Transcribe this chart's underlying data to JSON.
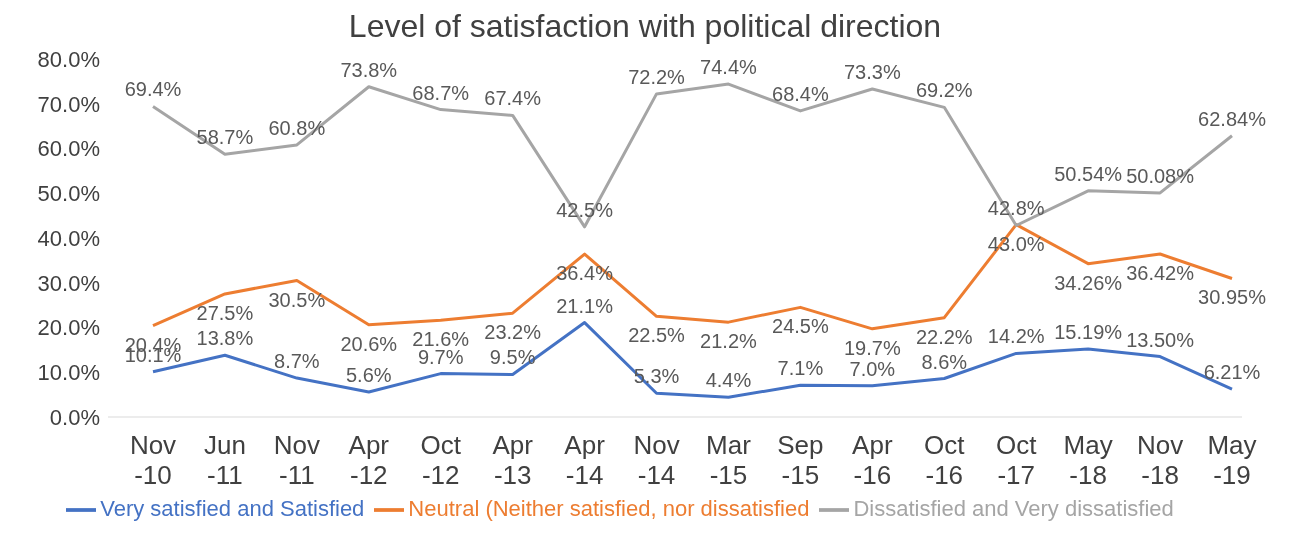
{
  "chart_data": {
    "type": "line",
    "title": "Level of satisfaction with political direction",
    "categories": [
      "Nov\n-10",
      "Jun\n-11",
      "Nov\n-11",
      "Apr\n-12",
      "Oct\n-12",
      "Apr\n-13",
      "Apr\n-14",
      "Nov\n-14",
      "Mar\n-15",
      "Sep\n-15",
      "Apr\n-16",
      "Oct\n-16",
      "Oct\n-17",
      "May\n-18",
      "Nov\n-18",
      "May\n-19"
    ],
    "series": [
      {
        "name": "Very satisfied and Satisfied",
        "color": "#4472c4",
        "values": [
          10.1,
          13.8,
          8.7,
          5.6,
          9.7,
          9.5,
          21.1,
          5.3,
          4.4,
          7.1,
          7.0,
          8.6,
          14.2,
          15.19,
          13.5,
          6.21
        ],
        "value_labels": [
          "10.1%",
          "13.8%",
          "8.7%",
          "5.6%",
          "9.7%",
          "9.5%",
          "21.1%",
          "5.3%",
          "4.4%",
          "7.1%",
          "7.0%",
          "8.6%",
          "14.2%",
          "15.19%",
          "13.50%",
          "6.21%"
        ]
      },
      {
        "name": "Neutral (Neither satisfied, nor dissatisfied",
        "color": "#ed7d31",
        "values": [
          20.4,
          27.5,
          30.5,
          20.6,
          21.6,
          23.2,
          36.4,
          22.5,
          21.2,
          24.5,
          19.7,
          22.2,
          43.0,
          34.26,
          36.42,
          30.95
        ],
        "value_labels": [
          "20.4%",
          "27.5%",
          "30.5%",
          "20.6%",
          "21.6%",
          "23.2%",
          "36.4%",
          "22.5%",
          "21.2%",
          "24.5%",
          "19.7%",
          "22.2%",
          "43.0%",
          "34.26%",
          "36.42%",
          "30.95%"
        ]
      },
      {
        "name": "Dissatisfied and Very dissatisfied",
        "color": "#a5a5a5",
        "values": [
          69.4,
          58.7,
          60.8,
          73.8,
          68.7,
          67.4,
          42.5,
          72.2,
          74.4,
          68.4,
          73.3,
          69.2,
          42.8,
          50.54,
          50.08,
          62.84
        ],
        "value_labels": [
          "69.4%",
          "58.7%",
          "60.8%",
          "73.8%",
          "68.7%",
          "67.4%",
          "42.5%",
          "72.2%",
          "74.4%",
          "68.4%",
          "73.3%",
          "69.2%",
          "42.8%",
          "50.54%",
          "50.08%",
          "62.84%"
        ]
      }
    ],
    "ylim": [
      0,
      80
    ],
    "yticks": [
      {
        "value": 0,
        "label": "0.0%"
      },
      {
        "value": 10,
        "label": "10.0%"
      },
      {
        "value": 20,
        "label": "20.0%"
      },
      {
        "value": 30,
        "label": "30.0%"
      },
      {
        "value": 40,
        "label": "40.0%"
      },
      {
        "value": 50,
        "label": "50.0%"
      },
      {
        "value": 60,
        "label": "60.0%"
      },
      {
        "value": 70,
        "label": "70.0%"
      },
      {
        "value": 80,
        "label": "80.0%"
      }
    ],
    "legend": "bottom",
    "marker": "none",
    "line_style": "solid"
  }
}
